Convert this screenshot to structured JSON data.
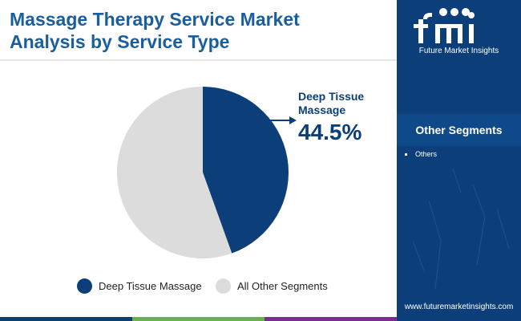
{
  "title": {
    "line1": "Massage Therapy Service Market",
    "line2": "Analysis by Service Type"
  },
  "brand": {
    "logo_text": "fmi",
    "name": "Future Market Insights"
  },
  "sidebar": {
    "heading": "Other Segments",
    "items": [
      "Others"
    ],
    "website": "www.futuremarketinsights.com"
  },
  "colors": {
    "title": "#1a5e9e",
    "deep_tissue": "#0c3f7a",
    "other_segments": "#dcdcdc",
    "sidebar": "#0c3f7a",
    "bar_blue": "#0c3f7a",
    "bar_green": "#6ab04c",
    "bar_purple": "#7b2d8b"
  },
  "chart_data": {
    "type": "pie",
    "title": "Massage Therapy Service Market Analysis by Service Type",
    "slices": [
      {
        "label": "Deep Tissue Massage",
        "value": 44.5,
        "color": "#0c3f7a"
      },
      {
        "label": "All Other Segments",
        "value": 55.5,
        "color": "#dcdcdc"
      }
    ],
    "callout": {
      "line1": "Deep Tissue",
      "line2": "Massage",
      "value": "44.5%"
    },
    "legend": [
      "Deep Tissue Massage",
      "All Other Segments"
    ],
    "legend_position": "bottom"
  }
}
